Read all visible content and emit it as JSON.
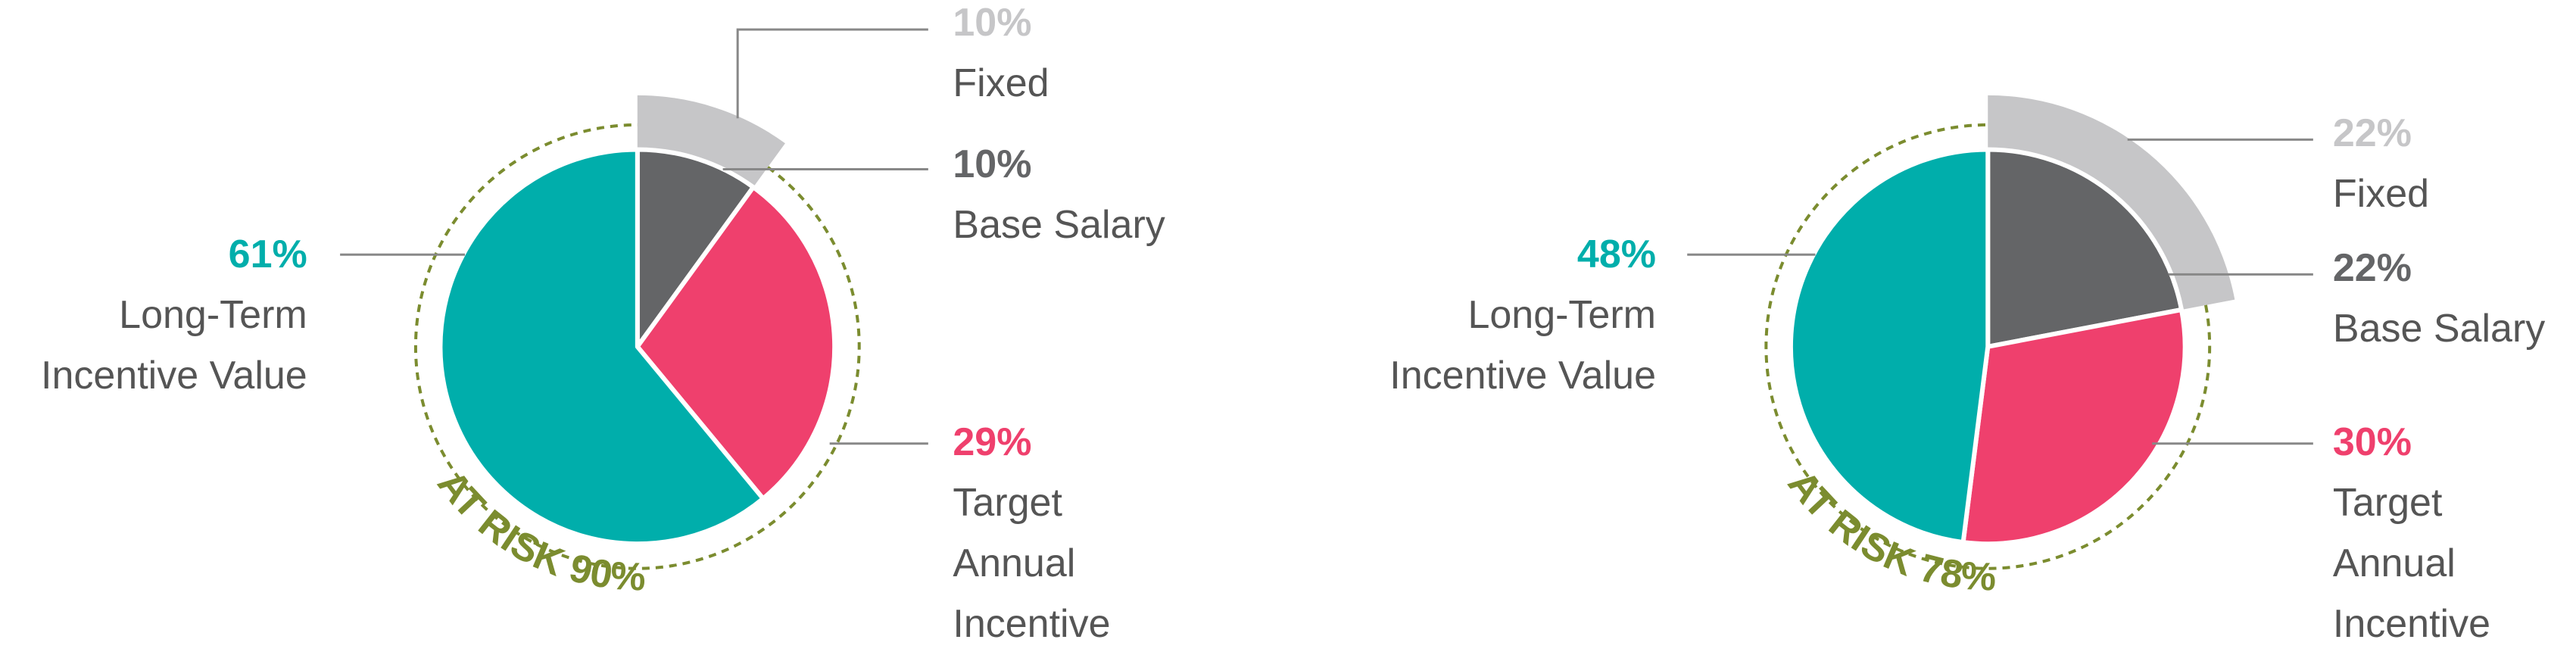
{
  "chart_data": [
    {
      "type": "pie",
      "categories": [
        "Base Salary",
        "Target Annual Incentive",
        "Long-Term Incentive Value"
      ],
      "values": [
        10,
        29,
        61
      ],
      "value_labels": [
        "10%",
        "29%",
        "61%"
      ],
      "colors": [
        "#646567",
        "#ef406d",
        "#00aeab"
      ],
      "fixed": {
        "name": "Fixed",
        "value": 10,
        "value_label": "10%",
        "color": "#c6c6c8"
      },
      "at_risk": {
        "value": 90,
        "label": "AT RISK 90%",
        "color": "#7b8c2f"
      }
    },
    {
      "type": "pie",
      "categories": [
        "Base Salary",
        "Target Annual Incentive",
        "Long-Term Incentive Value"
      ],
      "values": [
        22,
        30,
        48
      ],
      "value_labels": [
        "22%",
        "30%",
        "48%"
      ],
      "colors": [
        "#646567",
        "#ef406d",
        "#00aeab"
      ],
      "fixed": {
        "name": "Fixed",
        "value": 22,
        "value_label": "22%",
        "color": "#c6c6c8"
      },
      "at_risk": {
        "value": 78,
        "label": "AT RISK 78%",
        "color": "#7b8c2f"
      }
    }
  ]
}
